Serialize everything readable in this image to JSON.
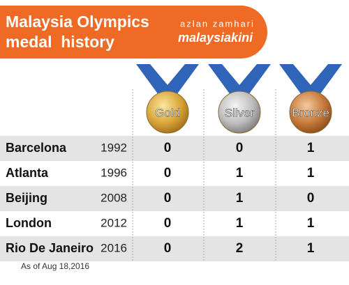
{
  "header": {
    "title_lines": [
      "Malaysia Olympics",
      "medal  history"
    ],
    "byline": "azlan zamhari",
    "brand": "malaysiakini"
  },
  "table": {
    "columns": [
      "Gold",
      "Silver",
      "Bronze"
    ],
    "rows": [
      {
        "city": "Barcelona",
        "year": "1992",
        "medals": [
          0,
          0,
          1
        ]
      },
      {
        "city": "Atlanta",
        "year": "1996",
        "medals": [
          0,
          1,
          1
        ]
      },
      {
        "city": "Beijing",
        "year": "2008",
        "medals": [
          0,
          1,
          0
        ]
      },
      {
        "city": "London",
        "year": "2012",
        "medals": [
          0,
          1,
          1
        ]
      },
      {
        "city": "Rio De Janeiro",
        "year": "2016",
        "medals": [
          0,
          2,
          1
        ]
      }
    ]
  },
  "footnote": "As of Aug 18,2016"
}
